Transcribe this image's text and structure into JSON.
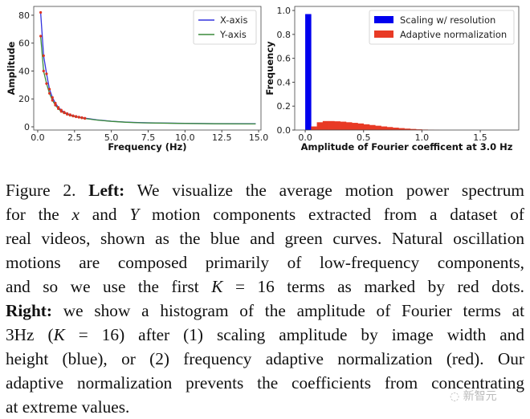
{
  "chart_data": [
    {
      "type": "line",
      "xlabel": "Frequency (Hz)",
      "ylabel": "Amplitude",
      "xlim": [
        -0.27,
        15.16
      ],
      "ylim": [
        -2.3,
        86.3
      ],
      "xticks": [
        "0.0",
        "2.5",
        "5.0",
        "7.5",
        "10.0",
        "12.5",
        "15.0"
      ],
      "xtick_values": [
        0,
        2.5,
        5,
        7.5,
        10,
        12.5,
        15
      ],
      "yticks": [
        "0",
        "20",
        "40",
        "60",
        "80"
      ],
      "ytick_values": [
        0,
        20,
        40,
        60,
        80
      ],
      "legend_position": "top-right",
      "series": [
        {
          "name": "X-axis",
          "color": "#3333dd",
          "x": [
            0.2,
            0.4,
            0.6,
            0.8,
            1.0,
            1.2,
            1.4,
            1.6,
            1.8,
            2.0,
            2.2,
            2.4,
            2.6,
            2.8,
            3.0,
            3.2,
            4,
            5,
            6,
            7,
            8,
            10,
            12,
            14.8
          ],
          "y": [
            82,
            51,
            38,
            27,
            21,
            17,
            14,
            12,
            10.5,
            9.5,
            8.7,
            8,
            7.5,
            7,
            6.6,
            6.2,
            5,
            4,
            3.4,
            3,
            2.8,
            2.5,
            2.3,
            2.2
          ]
        },
        {
          "name": "Y-axis",
          "color": "#3a8a3a",
          "x": [
            0.2,
            0.4,
            0.6,
            0.8,
            1.0,
            1.2,
            1.4,
            1.6,
            1.8,
            2.0,
            2.2,
            2.4,
            2.6,
            2.8,
            3.0,
            3.2,
            4,
            5,
            6,
            7,
            8,
            10,
            12,
            14.8
          ],
          "y": [
            65,
            40,
            31,
            24,
            19,
            15.5,
            13,
            11,
            10,
            9,
            8.3,
            7.7,
            7.2,
            6.8,
            6.4,
            6,
            4.9,
            3.9,
            3.3,
            2.9,
            2.7,
            2.4,
            2.2,
            2.1
          ]
        }
      ],
      "markers": {
        "name": "K=16 terms",
        "color": "#dd3322"
      }
    },
    {
      "type": "bar",
      "xlabel": "Amplitude of Fourier coefficent at 3.0 Hz",
      "ylabel": "Frequency",
      "xlim": [
        -0.09,
        1.83
      ],
      "ylim": [
        0,
        1.034
      ],
      "xticks": [
        "0.0",
        "0.5",
        "1.0",
        "1.5"
      ],
      "xtick_values": [
        0,
        0.5,
        1,
        1.5
      ],
      "yticks": [
        "0.0",
        "0.2",
        "0.4",
        "0.6",
        "0.8",
        "1.0"
      ],
      "ytick_values": [
        0,
        0.2,
        0.4,
        0.6,
        0.8,
        1.0
      ],
      "legend_position": "top-right",
      "bin_width": 0.05,
      "series": [
        {
          "name": "Scaling w/ resolution",
          "color": "#0000ee",
          "bin_starts": [
            0.0
          ],
          "values": [
            0.97
          ]
        },
        {
          "name": "Adaptive normalization",
          "color": "#e83a25",
          "bin_starts": [
            0.05,
            0.1,
            0.15,
            0.2,
            0.25,
            0.3,
            0.35,
            0.4,
            0.45,
            0.5,
            0.55,
            0.6,
            0.65,
            0.7,
            0.75,
            0.8,
            0.85,
            0.9,
            0.95,
            1.0,
            1.05,
            1.1
          ],
          "values": [
            0.03,
            0.065,
            0.075,
            0.075,
            0.073,
            0.07,
            0.065,
            0.06,
            0.055,
            0.048,
            0.042,
            0.036,
            0.03,
            0.025,
            0.02,
            0.016,
            0.012,
            0.009,
            0.006,
            0.004,
            0.002,
            0.001
          ]
        }
      ]
    }
  ],
  "caption": {
    "lines": [
      [
        {
          "t": "Figure 2. "
        },
        {
          "t": "Left:",
          "s": "b"
        },
        {
          "t": " We visualize the average motion power spectrum"
        }
      ],
      [
        {
          "t": "for the "
        },
        {
          "t": "x",
          "s": "i"
        },
        {
          "t": " and "
        },
        {
          "t": "Y",
          "s": "i"
        },
        {
          "t": " motion components extracted from a dataset of"
        }
      ],
      [
        {
          "t": "real videos, shown as the blue and green curves. Natural oscillation"
        }
      ],
      [
        {
          "t": "motions are composed primarily of low-frequency components,"
        }
      ],
      [
        {
          "t": "and so we use the first "
        },
        {
          "t": "K",
          "s": "i"
        },
        {
          "t": " = 16 terms as marked by red dots."
        }
      ],
      [
        {
          "t": "Right:",
          "s": "b"
        },
        {
          "t": " we show a histogram of the amplitude of Fourier terms at"
        }
      ],
      [
        {
          "t": "3Hz ("
        },
        {
          "t": "K",
          "s": "i"
        },
        {
          "t": " = 16) after (1) scaling amplitude by image width and"
        }
      ],
      [
        {
          "t": "height (blue), or (2) frequency adaptive normalization (red). Our"
        }
      ],
      [
        {
          "t": "adaptive normalization prevents the coefficients from concentrating"
        }
      ],
      [
        {
          "t": "at extreme values."
        }
      ]
    ]
  },
  "watermark": "新智元"
}
